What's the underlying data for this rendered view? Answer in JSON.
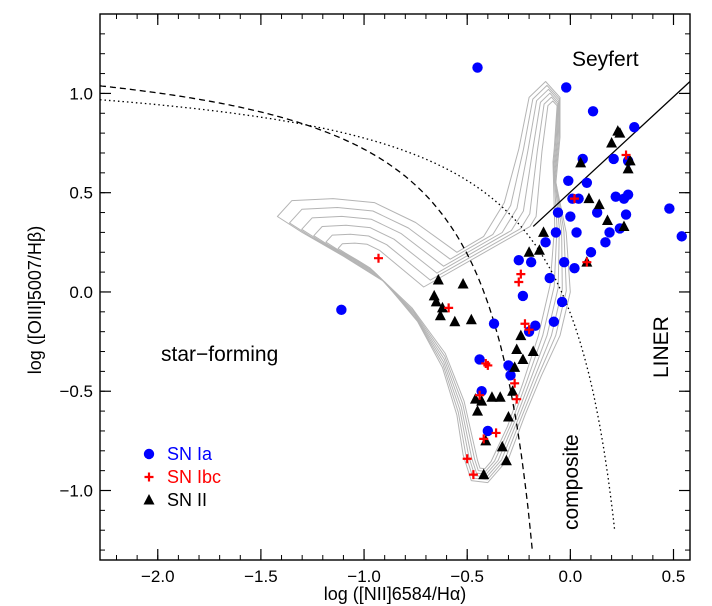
{
  "chart_data": {
    "type": "scatter",
    "xlabel": "log ([NII]6584/Hα)",
    "ylabel": "log ([OIII]5007/Hβ)",
    "xlim": [
      -2.28,
      0.58
    ],
    "ylim": [
      -1.35,
      1.4
    ],
    "x_ticks": [
      -2.0,
      -1.5,
      -1.0,
      -0.5,
      0.0,
      0.5
    ],
    "x_tick_labels": [
      "−2.0",
      "−1.5",
      "−1.0",
      "−0.5",
      "0.0",
      "0.5"
    ],
    "y_ticks": [
      -1.0,
      -0.5,
      0.0,
      0.5,
      1.0
    ],
    "y_tick_labels": [
      "−1.0",
      "−0.5",
      "0.0",
      "0.5",
      "1.0"
    ],
    "grid": false,
    "legend_position": "bottom-left",
    "regions": {
      "seyfert": "Seyfert",
      "liner": "LINER",
      "star_forming": "star−forming",
      "composite": "composite"
    },
    "colors": {
      "sn_ia": "#0000ff",
      "sn_ibc": "#ff0000",
      "sn_ii": "#000000",
      "contours": "#b4b4b4"
    },
    "series": [
      {
        "name": "SN Ia",
        "marker": "circle",
        "color": "#0000ff",
        "points": [
          [
            -1.11,
            -0.09
          ],
          [
            -0.45,
            1.13
          ],
          [
            -0.44,
            -0.34
          ],
          [
            -0.43,
            -0.5
          ],
          [
            -0.4,
            -0.7
          ],
          [
            -0.37,
            -0.16
          ],
          [
            -0.3,
            -0.37
          ],
          [
            -0.29,
            -0.42
          ],
          [
            -0.25,
            0.16
          ],
          [
            -0.23,
            -0.02
          ],
          [
            -0.2,
            -0.2
          ],
          [
            -0.19,
            0.15
          ],
          [
            -0.17,
            -0.17
          ],
          [
            -0.12,
            0.25
          ],
          [
            -0.1,
            0.07
          ],
          [
            -0.08,
            -0.15
          ],
          [
            -0.07,
            0.3
          ],
          [
            -0.06,
            0.4
          ],
          [
            -0.04,
            -0.05
          ],
          [
            -0.03,
            0.15
          ],
          [
            -0.02,
            1.03
          ],
          [
            -0.01,
            0.56
          ],
          [
            0.0,
            0.38
          ],
          [
            0.01,
            0.47
          ],
          [
            0.02,
            0.12
          ],
          [
            0.03,
            0.3
          ],
          [
            0.04,
            0.47
          ],
          [
            0.06,
            0.67
          ],
          [
            0.08,
            0.55
          ],
          [
            0.1,
            0.2
          ],
          [
            0.11,
            0.91
          ],
          [
            0.13,
            0.4
          ],
          [
            0.17,
            0.25
          ],
          [
            0.19,
            0.3
          ],
          [
            0.21,
            0.67
          ],
          [
            0.22,
            0.48
          ],
          [
            0.24,
            0.32
          ],
          [
            0.26,
            0.47
          ],
          [
            0.27,
            0.39
          ],
          [
            0.28,
            0.66
          ],
          [
            0.28,
            0.49
          ],
          [
            0.31,
            0.83
          ],
          [
            0.48,
            0.42
          ],
          [
            0.54,
            0.28
          ]
        ]
      },
      {
        "name": "SN Ibc",
        "marker": "plus",
        "color": "#ff0000",
        "points": [
          [
            -0.93,
            0.17
          ],
          [
            -0.59,
            -0.08
          ],
          [
            -0.5,
            -0.84
          ],
          [
            -0.47,
            -0.92
          ],
          [
            -0.44,
            -0.52
          ],
          [
            -0.42,
            -0.74
          ],
          [
            -0.41,
            -0.36
          ],
          [
            -0.4,
            -0.37
          ],
          [
            -0.36,
            -0.71
          ],
          [
            -0.27,
            -0.46
          ],
          [
            -0.26,
            -0.54
          ],
          [
            -0.25,
            0.05
          ],
          [
            -0.24,
            0.09
          ],
          [
            -0.22,
            -0.16
          ],
          [
            -0.2,
            -0.19
          ],
          [
            0.02,
            0.47
          ],
          [
            0.08,
            0.15
          ],
          [
            0.27,
            0.69
          ]
        ]
      },
      {
        "name": "SN II",
        "marker": "triangle",
        "color": "#000000",
        "points": [
          [
            -0.66,
            -0.02
          ],
          [
            -0.65,
            -0.05
          ],
          [
            -0.64,
            0.06
          ],
          [
            -0.63,
            -0.12
          ],
          [
            -0.62,
            -0.08
          ],
          [
            -0.56,
            -0.15
          ],
          [
            -0.52,
            0.04
          ],
          [
            -0.48,
            -0.14
          ],
          [
            -0.46,
            -0.54
          ],
          [
            -0.45,
            -0.6
          ],
          [
            -0.43,
            -0.55
          ],
          [
            -0.42,
            -0.92
          ],
          [
            -0.41,
            -0.75
          ],
          [
            -0.38,
            -0.53
          ],
          [
            -0.34,
            -0.53
          ],
          [
            -0.33,
            -0.78
          ],
          [
            -0.31,
            -0.85
          ],
          [
            -0.3,
            -0.63
          ],
          [
            -0.28,
            -0.5
          ],
          [
            -0.27,
            -0.38
          ],
          [
            -0.26,
            -0.29
          ],
          [
            -0.24,
            -0.22
          ],
          [
            -0.23,
            -0.34
          ],
          [
            -0.2,
            0.2
          ],
          [
            -0.18,
            -0.3
          ],
          [
            -0.15,
            0.21
          ],
          [
            -0.13,
            0.3
          ],
          [
            0.05,
            0.65
          ],
          [
            0.08,
            0.15
          ],
          [
            0.09,
            0.47
          ],
          [
            0.14,
            0.44
          ],
          [
            0.18,
            0.36
          ],
          [
            0.2,
            0.75
          ],
          [
            0.23,
            0.81
          ],
          [
            0.24,
            0.8
          ],
          [
            0.26,
            0.33
          ],
          [
            0.28,
            0.62
          ],
          [
            0.29,
            0.66
          ]
        ]
      }
    ]
  }
}
